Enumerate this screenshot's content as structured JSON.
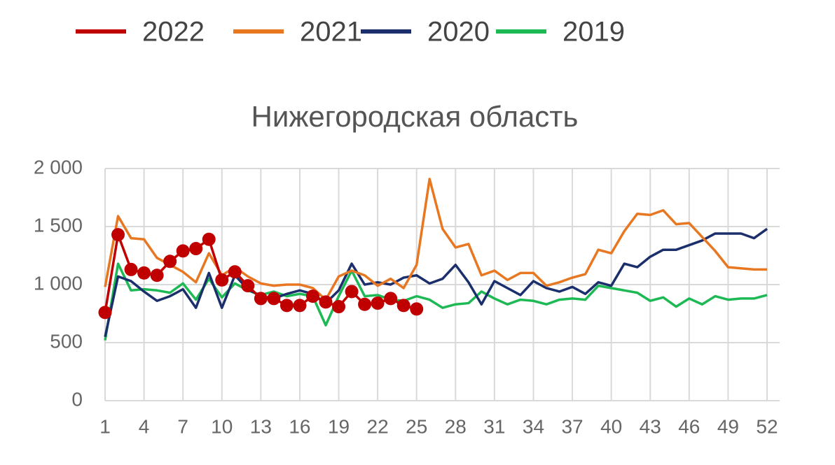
{
  "chart_data": {
    "type": "line",
    "title": "Нижегородская область",
    "x": [
      1,
      2,
      3,
      4,
      5,
      6,
      7,
      8,
      9,
      10,
      11,
      12,
      13,
      14,
      15,
      16,
      17,
      18,
      19,
      20,
      21,
      22,
      23,
      24,
      25,
      26,
      27,
      28,
      29,
      30,
      31,
      32,
      33,
      34,
      35,
      36,
      37,
      38,
      39,
      40,
      41,
      42,
      43,
      44,
      45,
      46,
      47,
      48,
      49,
      50,
      51,
      52
    ],
    "xlim": [
      1,
      52
    ],
    "xticks": [
      1,
      4,
      7,
      10,
      13,
      16,
      19,
      22,
      25,
      28,
      31,
      34,
      37,
      40,
      43,
      46,
      49,
      52
    ],
    "ylim": [
      0,
      2000
    ],
    "yticks": [
      0,
      500,
      {
        "value": 1000,
        "label": "1 000"
      },
      {
        "value": 1500,
        "label": "1 500"
      },
      {
        "value": 2000,
        "label": "2 000"
      }
    ],
    "grid": true,
    "legend": "top",
    "series": [
      {
        "name": "2022",
        "color": "#c00000",
        "marker": true,
        "values": [
          760,
          1430,
          1130,
          1100,
          1080,
          1200,
          1290,
          1310,
          1390,
          1040,
          1110,
          990,
          880,
          880,
          820,
          820,
          900,
          850,
          810,
          940,
          830,
          840,
          880,
          820,
          790,
          null,
          null,
          null,
          null,
          null,
          null,
          null,
          null,
          null,
          null,
          null,
          null,
          null,
          null,
          null,
          null,
          null,
          null,
          null,
          null,
          null,
          null,
          null,
          null,
          null,
          null,
          null
        ]
      },
      {
        "name": "2021",
        "color": "#e87722",
        "marker": false,
        "values": [
          980,
          1590,
          1400,
          1390,
          1230,
          1170,
          1110,
          1020,
          1270,
          1080,
          1150,
          1070,
          1010,
          990,
          1000,
          1000,
          970,
          870,
          1070,
          1120,
          1080,
          990,
          1050,
          970,
          1170,
          1910,
          1480,
          1320,
          1350,
          1080,
          1120,
          1040,
          1100,
          1100,
          990,
          1020,
          1060,
          1090,
          1300,
          1270,
          1460,
          1610,
          1600,
          1640,
          1520,
          1530,
          1410,
          1290,
          1150,
          1140,
          1130,
          1130
        ]
      },
      {
        "name": "2020",
        "color": "#1a2f6b",
        "marker": false,
        "values": [
          550,
          1070,
          1030,
          940,
          860,
          900,
          960,
          800,
          1100,
          800,
          1080,
          960,
          900,
          880,
          920,
          950,
          920,
          840,
          950,
          1180,
          1000,
          1020,
          1000,
          1060,
          1080,
          1010,
          1050,
          1170,
          1020,
          830,
          1030,
          970,
          910,
          1030,
          970,
          940,
          980,
          920,
          1020,
          990,
          1180,
          1150,
          1240,
          1300,
          1300,
          1340,
          1380,
          1440,
          1440,
          1440,
          1400,
          1480
        ]
      },
      {
        "name": "2019",
        "color": "#1db954",
        "marker": false,
        "values": [
          520,
          1180,
          950,
          960,
          950,
          930,
          1010,
          870,
          1050,
          890,
          1010,
          950,
          910,
          940,
          900,
          920,
          900,
          650,
          900,
          1120,
          900,
          910,
          870,
          860,
          900,
          870,
          800,
          830,
          840,
          940,
          880,
          830,
          870,
          860,
          830,
          870,
          880,
          870,
          990,
          970,
          950,
          930,
          860,
          890,
          810,
          880,
          830,
          900,
          870,
          880,
          880,
          910
        ]
      }
    ]
  }
}
